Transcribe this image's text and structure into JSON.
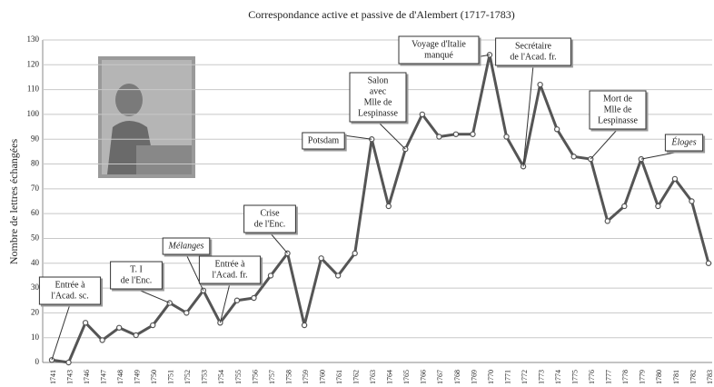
{
  "chart_data": {
    "type": "line",
    "title": "Correspondance active et passive de  d'Alembert (1717-1783)",
    "y_label": "Nombre de lettres échangées",
    "categories": [
      "1741",
      "1743",
      "1746",
      "1747",
      "1748",
      "1749",
      "1750",
      "1751",
      "1752",
      "1753",
      "1754",
      "1755",
      "1756",
      "1757",
      "1758",
      "1759",
      "1760",
      "1761",
      "1762",
      "1763",
      "1764",
      "1765",
      "1766",
      "1767",
      "1768",
      "1769",
      "1770",
      "1771",
      "1772",
      "1773",
      "1774",
      "1775",
      "1776",
      "1777",
      "1778",
      "1779",
      "1780",
      "1781",
      "1782",
      "1783"
    ],
    "series": [
      {
        "color": "#555555",
        "values": [
          1,
          0,
          16,
          9,
          14,
          11,
          15,
          24,
          20,
          29,
          16,
          25,
          26,
          35,
          44,
          15,
          42,
          35,
          44,
          90,
          63,
          86,
          100,
          91,
          92,
          92,
          124,
          91,
          79,
          112,
          94,
          83,
          82,
          57,
          63,
          82,
          63,
          74,
          65,
          40
        ]
      }
    ],
    "ylim": [
      0,
      130
    ],
    "yticks": [
      0,
      10,
      20,
      30,
      40,
      50,
      60,
      70,
      80,
      90,
      100,
      110,
      120,
      130
    ],
    "grid": true,
    "annotations": [
      {
        "lines": [
          "Entrée à",
          "l'Acad. sc."
        ]
      },
      {
        "lines": [
          "T. I",
          "de l'Enc."
        ]
      },
      {
        "lines": [
          "Mélanges"
        ]
      },
      {
        "lines": [
          "Entrée à",
          "l'Acad. fr."
        ]
      },
      {
        "lines": [
          "Crise",
          "de l'Enc."
        ]
      },
      {
        "lines": [
          "Potsdam"
        ]
      },
      {
        "lines": [
          "Salon",
          "avec",
          "Mlle de",
          "Lespinasse"
        ]
      },
      {
        "lines": [
          "Voyage d'Italie",
          "manqué"
        ]
      },
      {
        "lines": [
          "Secrétaire",
          "de l'Acad. fr."
        ]
      },
      {
        "lines": [
          "Mort de",
          "Mlle de",
          "Lespinasse"
        ]
      },
      {
        "lines": [
          "Éloges"
        ]
      }
    ]
  }
}
